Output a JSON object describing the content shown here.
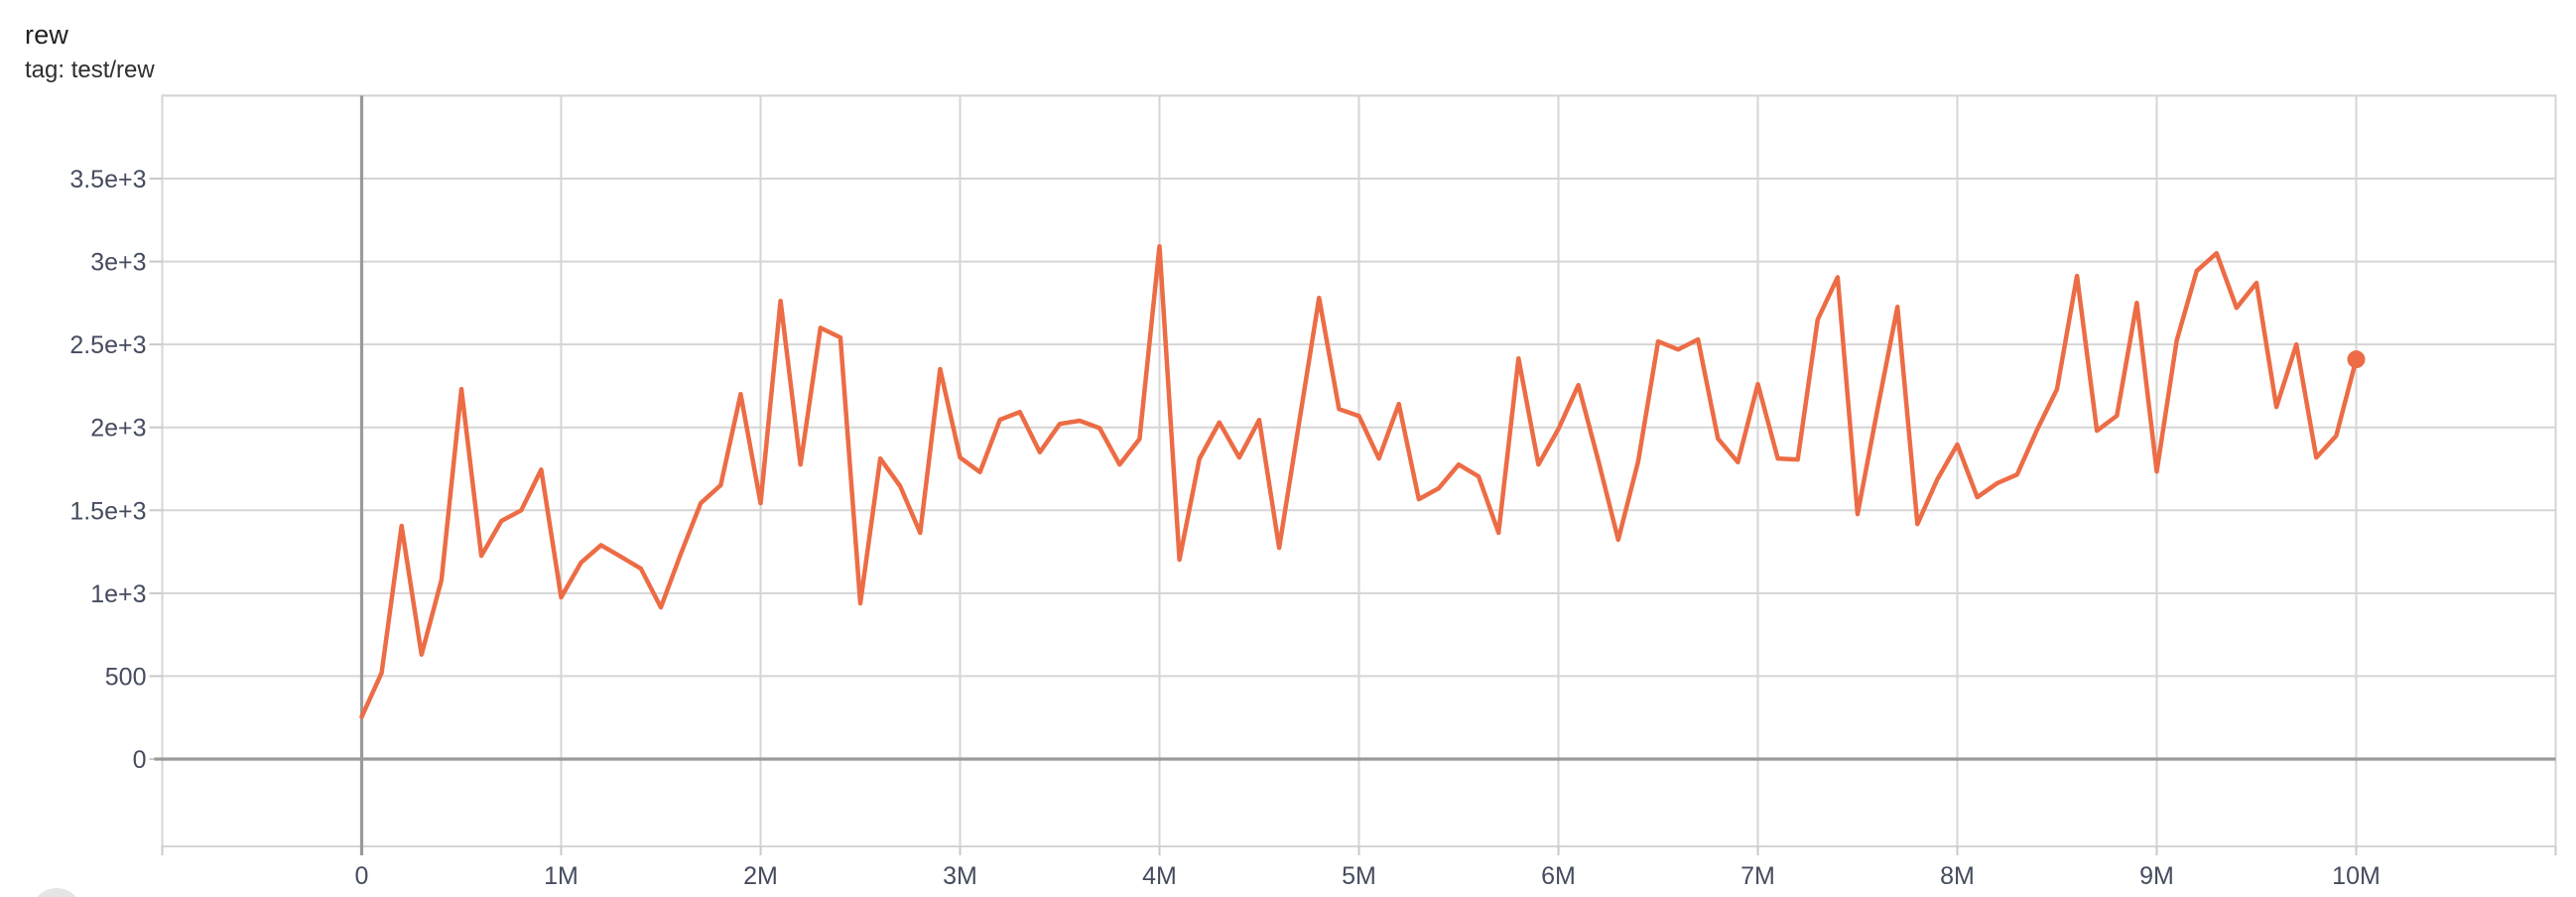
{
  "chart_data": {
    "type": "line",
    "title": "rew",
    "tag_line": "tag: test/rew",
    "xlabel": "",
    "ylabel": "",
    "x_unit": "steps (millions)",
    "xlim_millions": [
      -1,
      11
    ],
    "ylim": [
      -526,
      4002
    ],
    "grid": "on",
    "legend": "none",
    "colors": {
      "line": "#ec6c45",
      "end_dot": "#ec6c45",
      "grid_light": "#d5d5d5",
      "zero_line": "#9a9a9a",
      "tick_mark": "#c9c9c9",
      "tick_label": "#454c5f",
      "background": "#ffffff"
    },
    "x_ticks": [
      {
        "v": -1,
        "label": ""
      },
      {
        "v": 0,
        "label": "0"
      },
      {
        "v": 1,
        "label": "1M"
      },
      {
        "v": 2,
        "label": "2M"
      },
      {
        "v": 3,
        "label": "3M"
      },
      {
        "v": 4,
        "label": "4M"
      },
      {
        "v": 5,
        "label": "5M"
      },
      {
        "v": 6,
        "label": "6M"
      },
      {
        "v": 7,
        "label": "7M"
      },
      {
        "v": 8,
        "label": "8M"
      },
      {
        "v": 9,
        "label": "9M"
      },
      {
        "v": 10,
        "label": "10M"
      },
      {
        "v": 11,
        "label": ""
      }
    ],
    "y_ticks": [
      {
        "v": 0,
        "label": "0"
      },
      {
        "v": 500,
        "label": "500"
      },
      {
        "v": 1000,
        "label": "1e+3"
      },
      {
        "v": 1500,
        "label": "1.5e+3"
      },
      {
        "v": 2000,
        "label": "2e+3"
      },
      {
        "v": 2500,
        "label": "2.5e+3"
      },
      {
        "v": 3000,
        "label": "3e+3"
      },
      {
        "v": 3500,
        "label": "3.5e+3"
      },
      {
        "v": 4000,
        "label": ""
      }
    ],
    "series": [
      {
        "name": "test/rew",
        "color": "#ec6c45",
        "end_marker": true,
        "steps_millions": [
          0,
          0.1,
          0.2,
          0.3,
          0.4,
          0.5,
          0.6,
          0.7,
          0.8,
          0.9,
          1.0,
          1.1,
          1.2,
          1.3,
          1.4,
          1.5,
          1.6,
          1.7,
          1.8,
          1.9,
          2.0,
          2.1,
          2.2,
          2.3,
          2.4,
          2.5,
          2.6,
          2.7,
          2.8,
          2.9,
          3.0,
          3.1,
          3.2,
          3.3,
          3.4,
          3.5,
          3.6,
          3.7,
          3.8,
          3.9,
          4.0,
          4.1,
          4.2,
          4.3,
          4.4,
          4.5,
          4.6,
          4.7,
          4.8,
          4.9,
          5.0,
          5.1,
          5.2,
          5.3,
          5.4,
          5.5,
          5.6,
          5.7,
          5.8,
          5.9,
          6.0,
          6.1,
          6.2,
          6.3,
          6.4,
          6.5,
          6.6,
          6.7,
          6.8,
          6.9,
          7.0,
          7.1,
          7.2,
          7.3,
          7.4,
          7.5,
          7.6,
          7.7,
          7.8,
          7.9,
          8.0,
          8.1,
          8.2,
          8.3,
          8.4,
          8.5,
          8.6,
          8.7,
          8.8,
          8.9,
          9.0,
          9.1,
          9.2,
          9.3,
          9.4,
          9.5,
          9.6,
          9.7,
          9.8,
          9.9,
          10.0
        ],
        "values": [
          255,
          520,
          1406,
          630,
          1080,
          2231,
          1226,
          1435,
          1500,
          1745,
          975,
          1185,
          1290,
          1220,
          1148,
          915,
          1238,
          1543,
          1651,
          2201,
          1543,
          2763,
          1776,
          2600,
          2542,
          939,
          1812,
          1645,
          1364,
          2351,
          1818,
          1730,
          2046,
          2093,
          1850,
          2021,
          2040,
          1995,
          1776,
          1930,
          3092,
          1202,
          1810,
          2030,
          1818,
          2045,
          1274,
          2028,
          2781,
          2111,
          2069,
          1812,
          2141,
          1567,
          1633,
          1776,
          1704,
          1364,
          2416,
          1776,
          1990,
          2255,
          1800,
          1322,
          1794,
          2518,
          2470,
          2530,
          1932,
          1790,
          2261,
          1812,
          1806,
          2650,
          2905,
          1477,
          2110,
          2727,
          1417,
          1687,
          1896,
          1579,
          1663,
          1716,
          1986,
          2231,
          2913,
          1980,
          2070,
          2751,
          1734,
          2523,
          2943,
          3050,
          2721,
          2871,
          2123,
          2500,
          1818,
          1950,
          2410
        ],
        "final_value": 2410,
        "final_step_millions": 10
      }
    ]
  }
}
